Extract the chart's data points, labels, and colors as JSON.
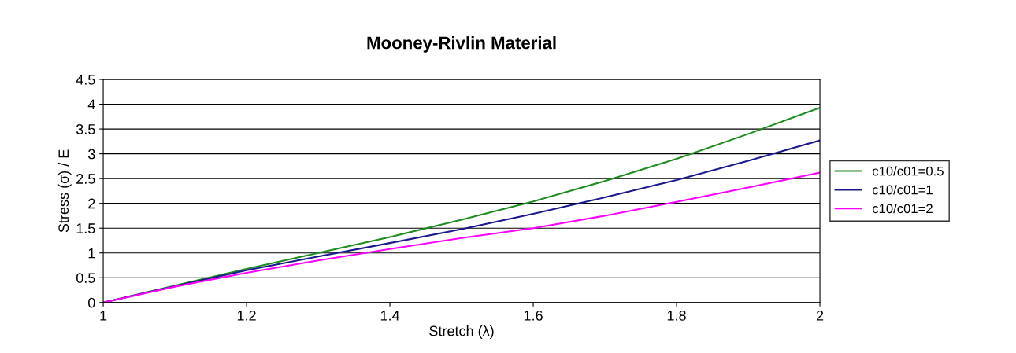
{
  "chart_data": {
    "type": "line",
    "title": "Mooney-Rivlin Material",
    "xlabel": "Stretch (λ)",
    "ylabel": "Stress (σ) / E",
    "x": [
      1,
      1.1,
      1.2,
      1.3,
      1.4,
      1.5,
      1.6,
      1.7,
      1.8,
      1.9,
      2
    ],
    "series": [
      {
        "name": "c10/c01=0.5",
        "color": "#1e8c1e",
        "values": [
          0,
          0.34,
          0.68,
          1.0,
          1.32,
          1.67,
          2.04,
          2.45,
          2.9,
          3.4,
          3.93
        ]
      },
      {
        "name": "c10/c01=1",
        "color": "#1a1a8c",
        "values": [
          0,
          0.33,
          0.65,
          0.93,
          1.2,
          1.48,
          1.79,
          2.12,
          2.47,
          2.86,
          3.27
        ]
      },
      {
        "name": "c10/c01=2",
        "color": "#ff00ff",
        "values": [
          0,
          0.32,
          0.6,
          0.85,
          1.08,
          1.3,
          1.5,
          1.75,
          2.03,
          2.32,
          2.62
        ]
      }
    ],
    "xlim": [
      1,
      2
    ],
    "xticks": [
      1,
      1.2,
      1.4,
      1.6,
      1.8,
      2
    ],
    "ylim": [
      0,
      4.5
    ],
    "yticks": [
      0,
      0.5,
      1,
      1.5,
      2,
      2.5,
      3,
      3.5,
      4,
      4.5
    ],
    "grid": "y",
    "legend": "right",
    "marker": "none",
    "line_style": "solid"
  }
}
